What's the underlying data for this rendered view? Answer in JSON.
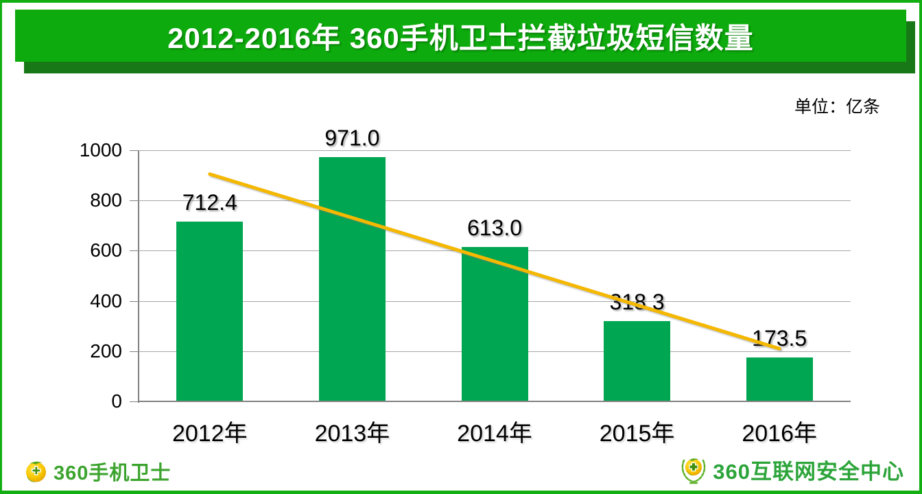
{
  "frame": {
    "border_color": "#12AE12"
  },
  "header": {
    "title": "2012-2016年 360手机卫士拦截垃圾短信数量",
    "bg_color": "#0DAB0D",
    "shadow_color": "#187818",
    "text_color": "#FFFFFF"
  },
  "unit_label": "单位：亿条",
  "chart_data": {
    "type": "bar",
    "title": "2012-2016年 360手机卫士拦截垃圾短信数量",
    "unit": "亿条",
    "categories": [
      "2012年",
      "2013年",
      "2014年",
      "2015年",
      "2016年"
    ],
    "values": [
      712.4,
      971.0,
      613.0,
      318.3,
      173.5
    ],
    "value_labels": [
      "712.4",
      "971.0",
      "613.0",
      "318.3",
      "173.5"
    ],
    "ylim": [
      0,
      1000
    ],
    "yticks": [
      0,
      200,
      400,
      600,
      800,
      1000
    ],
    "grid": "horizontal",
    "legend": "none",
    "bar_color": "#00A651",
    "gridline_color": "#A6A6A6",
    "axis_color": "#808080",
    "trendline": {
      "type": "linear",
      "color": "#F5B800",
      "start_value": 905,
      "end_value": 210
    }
  },
  "footer": {
    "left_logo": {
      "text": "360手机卫士",
      "color": "#3CA42E"
    },
    "right_logo": {
      "text": "360互联网安全中心",
      "color": "#2CA43A"
    }
  }
}
